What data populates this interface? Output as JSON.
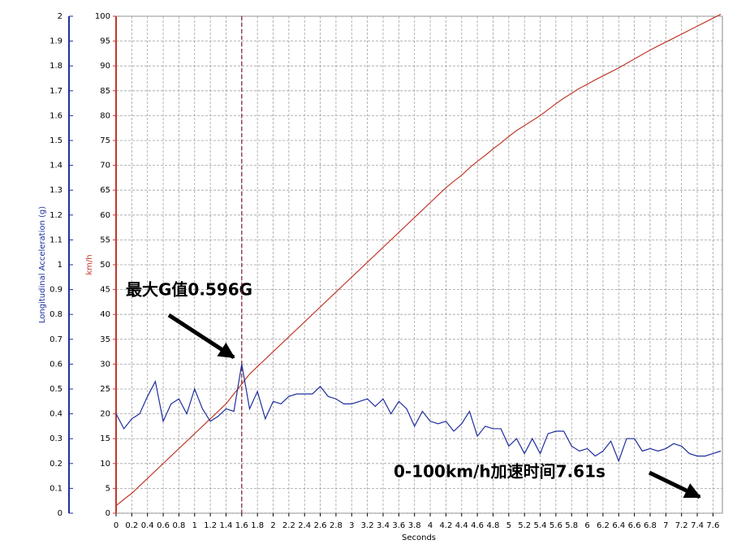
{
  "chart_data": {
    "type": "line",
    "ylabel": "Longitudinal Acceleration (g)",
    "y2label": "km/h",
    "xlabel": "Seconds",
    "annotations": [
      "最大G值0.596G",
      "0-100km/h加速时间7.61s"
    ],
    "marker_x": 1.6,
    "xlim": [
      0,
      7.72
    ],
    "xticks": [
      0,
      0.2,
      0.4,
      0.6,
      0.8,
      1,
      1.2,
      1.4,
      1.6,
      1.8,
      2,
      2.2,
      2.4,
      2.6,
      2.8,
      3,
      3.2,
      3.4,
      3.6,
      3.8,
      4,
      4.2,
      4.4,
      4.6,
      4.8,
      5,
      5.2,
      5.4,
      5.6,
      5.8,
      6,
      6.2,
      6.4,
      6.6,
      6.8,
      7,
      7.2,
      7.4,
      7.6
    ],
    "ylim": [
      0,
      2
    ],
    "yticks": [
      0,
      0.1,
      0.2,
      0.3,
      0.4,
      0.5,
      0.6,
      0.7,
      0.8,
      0.9,
      1,
      1.1,
      1.2,
      1.3,
      1.4,
      1.5,
      1.6,
      1.7,
      1.8,
      1.9,
      2
    ],
    "y2lim": [
      0,
      100
    ],
    "y2ticks": [
      0,
      5,
      10,
      15,
      20,
      25,
      30,
      35,
      40,
      45,
      50,
      55,
      60,
      65,
      70,
      75,
      80,
      85,
      90,
      95,
      100
    ],
    "grid": true,
    "x": [
      0,
      0.1,
      0.2,
      0.3,
      0.4,
      0.5,
      0.6,
      0.7,
      0.8,
      0.9,
      1,
      1.1,
      1.2,
      1.3,
      1.4,
      1.5,
      1.6,
      1.7,
      1.8,
      1.9,
      2,
      2.1,
      2.2,
      2.3,
      2.4,
      2.5,
      2.6,
      2.7,
      2.8,
      2.9,
      3,
      3.1,
      3.2,
      3.3,
      3.4,
      3.5,
      3.6,
      3.7,
      3.8,
      3.9,
      4,
      4.1,
      4.2,
      4.3,
      4.4,
      4.5,
      4.6,
      4.7,
      4.8,
      4.9,
      5,
      5.1,
      5.2,
      5.3,
      5.4,
      5.5,
      5.6,
      5.7,
      5.8,
      5.9,
      6,
      6.1,
      6.2,
      6.3,
      6.4,
      6.5,
      6.6,
      6.7,
      6.8,
      6.9,
      7,
      7.1,
      7.2,
      7.3,
      7.4,
      7.5,
      7.6,
      7.7
    ],
    "series": [
      {
        "color": "#c0392b",
        "axis": "y2",
        "values": [
          1.5,
          2.8,
          4,
          5.5,
          7,
          8.5,
          10,
          11.5,
          13,
          14.5,
          16,
          17.5,
          19,
          20.5,
          22,
          24,
          26,
          28,
          29.5,
          31,
          32.5,
          34,
          35.5,
          37,
          38.5,
          40,
          41.5,
          43,
          44.5,
          46,
          47.5,
          49,
          50.5,
          52,
          53.5,
          55,
          56.5,
          58,
          59.5,
          61,
          62.5,
          64,
          65.5,
          66.8,
          68,
          69.5,
          70.8,
          72,
          73.3,
          74.5,
          75.8,
          77,
          78,
          79,
          80,
          81.2,
          82.4,
          83.5,
          84.5,
          85.5,
          86.3,
          87.2,
          88,
          88.8,
          89.6,
          90.5,
          91.4,
          92.3,
          93.2,
          94,
          94.8,
          95.6,
          96.4,
          97.2,
          98,
          98.8,
          99.6,
          100.4
        ]
      },
      {
        "color": "#1f2f9c",
        "values": [
          0.4,
          0.34,
          0.38,
          0.4,
          0.47,
          0.53,
          0.37,
          0.44,
          0.46,
          0.4,
          0.5,
          0.42,
          0.37,
          0.39,
          0.42,
          0.41,
          0.6,
          0.42,
          0.49,
          0.38,
          0.45,
          0.44,
          0.47,
          0.48,
          0.48,
          0.48,
          0.51,
          0.47,
          0.46,
          0.44,
          0.44,
          0.45,
          0.46,
          0.43,
          0.46,
          0.4,
          0.45,
          0.42,
          0.35,
          0.41,
          0.37,
          0.36,
          0.37,
          0.33,
          0.36,
          0.41,
          0.31,
          0.35,
          0.34,
          0.34,
          0.27,
          0.3,
          0.24,
          0.3,
          0.24,
          0.32,
          0.33,
          0.33,
          0.27,
          0.25,
          0.26,
          0.23,
          0.25,
          0.29,
          0.21,
          0.3,
          0.3,
          0.25,
          0.26,
          0.25,
          0.26,
          0.28,
          0.27,
          0.24,
          0.23,
          0.23,
          0.24,
          0.25
        ]
      }
    ]
  }
}
